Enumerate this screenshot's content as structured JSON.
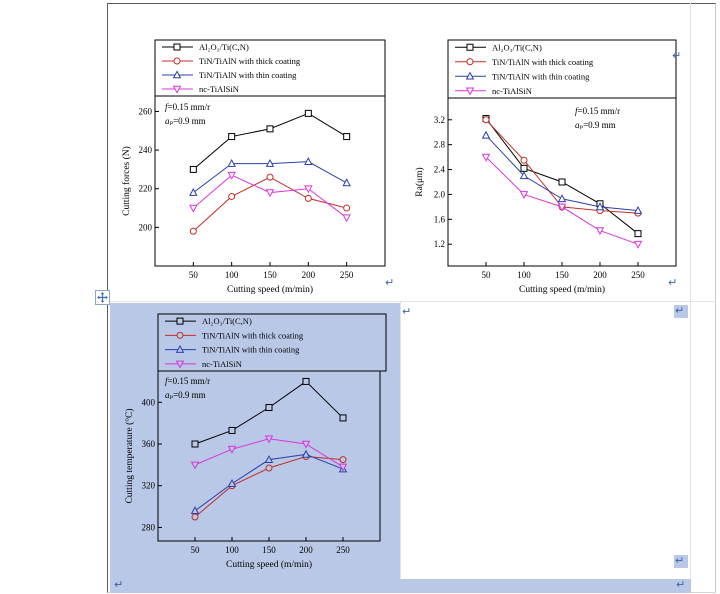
{
  "page": {
    "paragraph_mark": "↵",
    "selection_color": "#b9c8e6"
  },
  "chart_data": [
    {
      "type": "line",
      "title": "",
      "xlabel": "Cutting speed  (m/min)",
      "ylabel": "Cutting forces  (N)",
      "legend_position": "top",
      "grid": false,
      "x": [
        50,
        100,
        150,
        200,
        250
      ],
      "xticks": [
        50,
        100,
        150,
        200,
        250
      ],
      "xlim": [
        0,
        300
      ],
      "yticks": [
        200,
        220,
        240,
        260
      ],
      "ytick_labels": [
        "200",
        "220",
        "240",
        "260"
      ],
      "ylim": [
        180,
        268
      ],
      "annotation": [
        "f=0.15 mm/r",
        "aₚ=0.9 mm"
      ],
      "series": [
        {
          "name": "Al₂O₃/Ti(C,N)",
          "marker": "square",
          "color": "#000000",
          "values": [
            230,
            247,
            251,
            259,
            247
          ]
        },
        {
          "name": "TiN/TiAlN  with thick coating",
          "marker": "circle",
          "color": "#c03028",
          "values": [
            198,
            216,
            226,
            215,
            210
          ]
        },
        {
          "name": "TiN/TiAlN  with thin coating",
          "marker": "triangle-up",
          "color": "#2b3faa",
          "values": [
            218,
            233,
            233,
            234,
            223
          ]
        },
        {
          "name": "nc-TiAlSiN",
          "marker": "triangle-down",
          "color": "#d936d9",
          "values": [
            210,
            227,
            218,
            220,
            205
          ]
        }
      ]
    },
    {
      "type": "line",
      "title": "",
      "xlabel": "Cutting speed  (m/min)",
      "ylabel": "Ra(μm)",
      "legend_position": "top",
      "grid": false,
      "x": [
        50,
        100,
        150,
        200,
        250
      ],
      "xticks": [
        50,
        100,
        150,
        200,
        250
      ],
      "xlim": [
        0,
        300
      ],
      "yticks": [
        1.2,
        1.6,
        2.0,
        2.4,
        2.8,
        3.2
      ],
      "ytick_labels": [
        "1.2",
        "1.6",
        "2.0",
        "2.4",
        "2.8",
        "3.2"
      ],
      "ylim": [
        0.85,
        3.55
      ],
      "annotation": [
        "f=0.15 mm/r",
        "aₚ=0.9 mm"
      ],
      "series": [
        {
          "name": "Al₂O₃/Ti(C,N)",
          "marker": "square",
          "color": "#000000",
          "values": [
            3.22,
            2.42,
            2.2,
            1.85,
            1.37
          ]
        },
        {
          "name": "TiN/TiAlN  with thick coating",
          "marker": "circle",
          "color": "#c03028",
          "values": [
            3.2,
            2.55,
            1.8,
            1.74,
            1.7
          ]
        },
        {
          "name": "TiN/TiAlN  with thin coating",
          "marker": "triangle-up",
          "color": "#2b3faa",
          "values": [
            2.95,
            2.3,
            1.93,
            1.8,
            1.74
          ]
        },
        {
          "name": "nc-TiAlSiN",
          "marker": "triangle-down",
          "color": "#d936d9",
          "values": [
            2.6,
            2.0,
            1.8,
            1.42,
            1.2
          ]
        }
      ]
    },
    {
      "type": "line",
      "title": "",
      "xlabel": "Cutting speed  (m/min)",
      "ylabel": "Cutting temperature (°C)",
      "legend_position": "top",
      "grid": false,
      "x": [
        50,
        100,
        150,
        200,
        250
      ],
      "xticks": [
        50,
        100,
        150,
        200,
        250
      ],
      "xlim": [
        0,
        300
      ],
      "yticks": [
        280,
        320,
        360,
        400
      ],
      "ytick_labels": [
        "280",
        "320",
        "360",
        "400"
      ],
      "ylim": [
        267,
        430
      ],
      "annotation": [
        "f=0.15 mm/r",
        "aₚ=0.9 mm"
      ],
      "series": [
        {
          "name": "Al₂O₃/Ti(C,N)",
          "marker": "square",
          "color": "#000000",
          "values": [
            360,
            373,
            395,
            420,
            385
          ]
        },
        {
          "name": "TiN/TiAlN  with thick coating",
          "marker": "circle",
          "color": "#c03028",
          "values": [
            290,
            320,
            337,
            348,
            345
          ]
        },
        {
          "name": "TiN/TiAlN  with thin coating",
          "marker": "triangle-up",
          "color": "#2b3faa",
          "values": [
            296,
            322,
            345,
            350,
            336
          ]
        },
        {
          "name": "nc-TiAlSiN",
          "marker": "triangle-down",
          "color": "#d936d9",
          "values": [
            340,
            355,
            365,
            360,
            338
          ]
        }
      ]
    }
  ]
}
